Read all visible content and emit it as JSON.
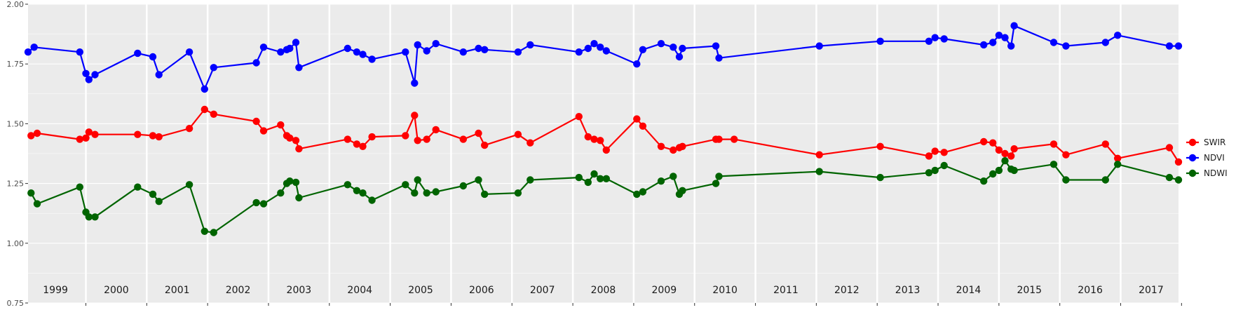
{
  "chart_data": {
    "type": "line",
    "title": "",
    "xlabel": "",
    "ylabel": "",
    "ylim": [
      0.75,
      2.0
    ],
    "xlim": [
      1998.55,
      2017.45
    ],
    "y_ticks": [
      "0.75",
      "1.00",
      "1.25",
      "1.50",
      "1.75",
      "2.00"
    ],
    "year_labels": [
      "1999",
      "2000",
      "2001",
      "2002",
      "2003",
      "2004",
      "2005",
      "2006",
      "2007",
      "2008",
      "2009",
      "2010",
      "2011",
      "2012",
      "2013",
      "2014",
      "2015",
      "2016",
      "2017"
    ],
    "grid": true,
    "panel_background": "#ebebeb",
    "legend_position": "right",
    "series": [
      {
        "name": "SWIR",
        "color": "#ff0000",
        "points": [
          [
            1998.6,
            1.45
          ],
          [
            1998.7,
            1.46
          ],
          [
            1999.4,
            1.435
          ],
          [
            1999.5,
            1.44
          ],
          [
            1999.55,
            1.465
          ],
          [
            1999.65,
            1.455
          ],
          [
            2000.35,
            1.455
          ],
          [
            2000.6,
            1.45
          ],
          [
            2000.7,
            1.445
          ],
          [
            2001.2,
            1.48
          ],
          [
            2001.45,
            1.56
          ],
          [
            2001.6,
            1.54
          ],
          [
            2002.3,
            1.51
          ],
          [
            2002.42,
            1.47
          ],
          [
            2002.7,
            1.495
          ],
          [
            2002.8,
            1.45
          ],
          [
            2002.85,
            1.44
          ],
          [
            2002.95,
            1.43
          ],
          [
            2003.0,
            1.395
          ],
          [
            2003.8,
            1.435
          ],
          [
            2003.95,
            1.415
          ],
          [
            2004.05,
            1.405
          ],
          [
            2004.2,
            1.445
          ],
          [
            2004.75,
            1.45
          ],
          [
            2004.9,
            1.535
          ],
          [
            2004.95,
            1.43
          ],
          [
            2005.1,
            1.435
          ],
          [
            2005.25,
            1.475
          ],
          [
            2005.7,
            1.435
          ],
          [
            2005.95,
            1.46
          ],
          [
            2006.05,
            1.41
          ],
          [
            2006.6,
            1.455
          ],
          [
            2006.8,
            1.42
          ],
          [
            2007.6,
            1.53
          ],
          [
            2007.75,
            1.445
          ],
          [
            2007.85,
            1.435
          ],
          [
            2007.95,
            1.43
          ],
          [
            2008.05,
            1.39
          ],
          [
            2008.55,
            1.52
          ],
          [
            2008.65,
            1.49
          ],
          [
            2008.95,
            1.405
          ],
          [
            2009.15,
            1.39
          ],
          [
            2009.25,
            1.4
          ],
          [
            2009.3,
            1.405
          ],
          [
            2009.85,
            1.435
          ],
          [
            2009.9,
            1.435
          ],
          [
            2010.15,
            1.435
          ],
          [
            2011.55,
            1.37
          ],
          [
            2012.55,
            1.405
          ],
          [
            2013.35,
            1.365
          ],
          [
            2013.45,
            1.385
          ],
          [
            2013.6,
            1.38
          ],
          [
            2014.25,
            1.425
          ],
          [
            2014.4,
            1.42
          ],
          [
            2014.5,
            1.39
          ],
          [
            2014.6,
            1.375
          ],
          [
            2014.7,
            1.365
          ],
          [
            2014.75,
            1.395
          ],
          [
            2015.4,
            1.415
          ],
          [
            2015.6,
            1.37
          ],
          [
            2016.25,
            1.415
          ],
          [
            2016.45,
            1.355
          ],
          [
            2017.3,
            1.4
          ],
          [
            2017.45,
            1.34
          ]
        ]
      },
      {
        "name": "NDVI",
        "color": "#0000ff",
        "points": [
          [
            1998.55,
            1.8
          ],
          [
            1998.65,
            1.82
          ],
          [
            1999.4,
            1.8
          ],
          [
            1999.5,
            1.71
          ],
          [
            1999.55,
            1.685
          ],
          [
            1999.65,
            1.705
          ],
          [
            2000.35,
            1.795
          ],
          [
            2000.6,
            1.78
          ],
          [
            2000.7,
            1.705
          ],
          [
            2001.2,
            1.8
          ],
          [
            2001.45,
            1.645
          ],
          [
            2001.6,
            1.735
          ],
          [
            2002.3,
            1.755
          ],
          [
            2002.42,
            1.82
          ],
          [
            2002.7,
            1.8
          ],
          [
            2002.8,
            1.81
          ],
          [
            2002.85,
            1.815
          ],
          [
            2002.95,
            1.84
          ],
          [
            2003.0,
            1.735
          ],
          [
            2003.8,
            1.815
          ],
          [
            2003.95,
            1.8
          ],
          [
            2004.05,
            1.79
          ],
          [
            2004.2,
            1.77
          ],
          [
            2004.75,
            1.8
          ],
          [
            2004.9,
            1.67
          ],
          [
            2004.95,
            1.83
          ],
          [
            2005.1,
            1.805
          ],
          [
            2005.25,
            1.835
          ],
          [
            2005.7,
            1.8
          ],
          [
            2005.95,
            1.815
          ],
          [
            2006.05,
            1.81
          ],
          [
            2006.6,
            1.8
          ],
          [
            2006.8,
            1.83
          ],
          [
            2007.6,
            1.8
          ],
          [
            2007.75,
            1.815
          ],
          [
            2007.85,
            1.835
          ],
          [
            2007.95,
            1.82
          ],
          [
            2008.05,
            1.805
          ],
          [
            2008.55,
            1.75
          ],
          [
            2008.65,
            1.81
          ],
          [
            2008.95,
            1.835
          ],
          [
            2009.15,
            1.82
          ],
          [
            2009.25,
            1.78
          ],
          [
            2009.3,
            1.815
          ],
          [
            2009.85,
            1.825
          ],
          [
            2009.9,
            1.775
          ],
          [
            2011.55,
            1.825
          ],
          [
            2012.55,
            1.845
          ],
          [
            2013.35,
            1.845
          ],
          [
            2013.45,
            1.86
          ],
          [
            2013.6,
            1.855
          ],
          [
            2014.25,
            1.83
          ],
          [
            2014.4,
            1.84
          ],
          [
            2014.5,
            1.87
          ],
          [
            2014.6,
            1.86
          ],
          [
            2014.7,
            1.825
          ],
          [
            2014.75,
            1.91
          ],
          [
            2015.4,
            1.84
          ],
          [
            2015.6,
            1.825
          ],
          [
            2016.25,
            1.84
          ],
          [
            2016.45,
            1.87
          ],
          [
            2017.3,
            1.825
          ],
          [
            2017.45,
            1.825
          ]
        ]
      },
      {
        "name": "NDWI",
        "color": "#006400",
        "points": [
          [
            1998.6,
            1.21
          ],
          [
            1998.7,
            1.165
          ],
          [
            1999.4,
            1.235
          ],
          [
            1999.5,
            1.13
          ],
          [
            1999.55,
            1.11
          ],
          [
            1999.65,
            1.11
          ],
          [
            2000.35,
            1.235
          ],
          [
            2000.6,
            1.205
          ],
          [
            2000.7,
            1.175
          ],
          [
            2001.2,
            1.245
          ],
          [
            2001.45,
            1.05
          ],
          [
            2001.6,
            1.045
          ],
          [
            2002.3,
            1.17
          ],
          [
            2002.42,
            1.165
          ],
          [
            2002.7,
            1.21
          ],
          [
            2002.8,
            1.25
          ],
          [
            2002.85,
            1.26
          ],
          [
            2002.95,
            1.255
          ],
          [
            2003.0,
            1.19
          ],
          [
            2003.8,
            1.245
          ],
          [
            2003.95,
            1.22
          ],
          [
            2004.05,
            1.21
          ],
          [
            2004.2,
            1.18
          ],
          [
            2004.75,
            1.245
          ],
          [
            2004.9,
            1.21
          ],
          [
            2004.95,
            1.265
          ],
          [
            2005.1,
            1.21
          ],
          [
            2005.25,
            1.215
          ],
          [
            2005.7,
            1.24
          ],
          [
            2005.95,
            1.265
          ],
          [
            2006.05,
            1.205
          ],
          [
            2006.6,
            1.21
          ],
          [
            2006.8,
            1.265
          ],
          [
            2007.6,
            1.275
          ],
          [
            2007.75,
            1.255
          ],
          [
            2007.85,
            1.29
          ],
          [
            2007.95,
            1.27
          ],
          [
            2008.05,
            1.27
          ],
          [
            2008.55,
            1.205
          ],
          [
            2008.65,
            1.215
          ],
          [
            2008.95,
            1.26
          ],
          [
            2009.15,
            1.28
          ],
          [
            2009.25,
            1.205
          ],
          [
            2009.3,
            1.22
          ],
          [
            2009.85,
            1.25
          ],
          [
            2009.9,
            1.28
          ],
          [
            2011.55,
            1.3
          ],
          [
            2012.55,
            1.275
          ],
          [
            2013.35,
            1.295
          ],
          [
            2013.45,
            1.305
          ],
          [
            2013.6,
            1.325
          ],
          [
            2014.25,
            1.26
          ],
          [
            2014.4,
            1.29
          ],
          [
            2014.5,
            1.305
          ],
          [
            2014.6,
            1.345
          ],
          [
            2014.7,
            1.31
          ],
          [
            2014.75,
            1.305
          ],
          [
            2015.4,
            1.33
          ],
          [
            2015.6,
            1.265
          ],
          [
            2016.25,
            1.265
          ],
          [
            2016.45,
            1.33
          ],
          [
            2017.3,
            1.275
          ],
          [
            2017.45,
            1.265
          ]
        ]
      }
    ]
  }
}
